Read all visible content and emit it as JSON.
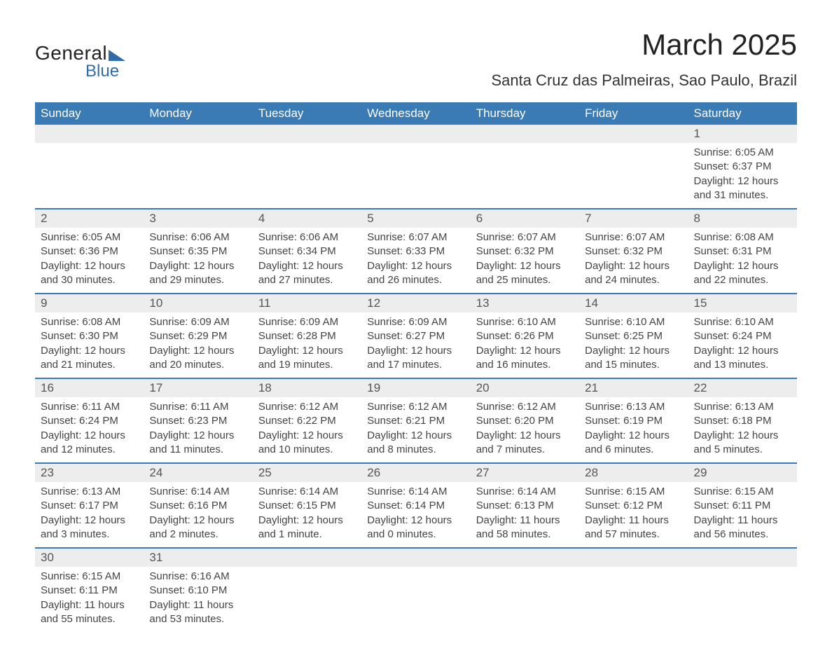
{
  "logo": {
    "line1": "General",
    "line2": "Blue",
    "brand_color": "#2f6ca8"
  },
  "title": "March 2025",
  "location": "Santa Cruz das Palmeiras, Sao Paulo, Brazil",
  "colors": {
    "header_bg": "#3a7ab5",
    "header_fg": "#ffffff",
    "daynum_bg": "#ededed",
    "row_divider": "#3a7ab5",
    "text": "#444444",
    "background": "#ffffff"
  },
  "typography": {
    "title_fontsize": 42,
    "location_fontsize": 22,
    "header_fontsize": 17,
    "body_fontsize": 15
  },
  "weekdays": [
    "Sunday",
    "Monday",
    "Tuesday",
    "Wednesday",
    "Thursday",
    "Friday",
    "Saturday"
  ],
  "labels": {
    "sunrise": "Sunrise:",
    "sunset": "Sunset:",
    "daylight": "Daylight:"
  },
  "weeks": [
    [
      null,
      null,
      null,
      null,
      null,
      null,
      {
        "d": "1",
        "sr": "6:05 AM",
        "ss": "6:37 PM",
        "dl": "12 hours and 31 minutes."
      }
    ],
    [
      {
        "d": "2",
        "sr": "6:05 AM",
        "ss": "6:36 PM",
        "dl": "12 hours and 30 minutes."
      },
      {
        "d": "3",
        "sr": "6:06 AM",
        "ss": "6:35 PM",
        "dl": "12 hours and 29 minutes."
      },
      {
        "d": "4",
        "sr": "6:06 AM",
        "ss": "6:34 PM",
        "dl": "12 hours and 27 minutes."
      },
      {
        "d": "5",
        "sr": "6:07 AM",
        "ss": "6:33 PM",
        "dl": "12 hours and 26 minutes."
      },
      {
        "d": "6",
        "sr": "6:07 AM",
        "ss": "6:32 PM",
        "dl": "12 hours and 25 minutes."
      },
      {
        "d": "7",
        "sr": "6:07 AM",
        "ss": "6:32 PM",
        "dl": "12 hours and 24 minutes."
      },
      {
        "d": "8",
        "sr": "6:08 AM",
        "ss": "6:31 PM",
        "dl": "12 hours and 22 minutes."
      }
    ],
    [
      {
        "d": "9",
        "sr": "6:08 AM",
        "ss": "6:30 PM",
        "dl": "12 hours and 21 minutes."
      },
      {
        "d": "10",
        "sr": "6:09 AM",
        "ss": "6:29 PM",
        "dl": "12 hours and 20 minutes."
      },
      {
        "d": "11",
        "sr": "6:09 AM",
        "ss": "6:28 PM",
        "dl": "12 hours and 19 minutes."
      },
      {
        "d": "12",
        "sr": "6:09 AM",
        "ss": "6:27 PM",
        "dl": "12 hours and 17 minutes."
      },
      {
        "d": "13",
        "sr": "6:10 AM",
        "ss": "6:26 PM",
        "dl": "12 hours and 16 minutes."
      },
      {
        "d": "14",
        "sr": "6:10 AM",
        "ss": "6:25 PM",
        "dl": "12 hours and 15 minutes."
      },
      {
        "d": "15",
        "sr": "6:10 AM",
        "ss": "6:24 PM",
        "dl": "12 hours and 13 minutes."
      }
    ],
    [
      {
        "d": "16",
        "sr": "6:11 AM",
        "ss": "6:24 PM",
        "dl": "12 hours and 12 minutes."
      },
      {
        "d": "17",
        "sr": "6:11 AM",
        "ss": "6:23 PM",
        "dl": "12 hours and 11 minutes."
      },
      {
        "d": "18",
        "sr": "6:12 AM",
        "ss": "6:22 PM",
        "dl": "12 hours and 10 minutes."
      },
      {
        "d": "19",
        "sr": "6:12 AM",
        "ss": "6:21 PM",
        "dl": "12 hours and 8 minutes."
      },
      {
        "d": "20",
        "sr": "6:12 AM",
        "ss": "6:20 PM",
        "dl": "12 hours and 7 minutes."
      },
      {
        "d": "21",
        "sr": "6:13 AM",
        "ss": "6:19 PM",
        "dl": "12 hours and 6 minutes."
      },
      {
        "d": "22",
        "sr": "6:13 AM",
        "ss": "6:18 PM",
        "dl": "12 hours and 5 minutes."
      }
    ],
    [
      {
        "d": "23",
        "sr": "6:13 AM",
        "ss": "6:17 PM",
        "dl": "12 hours and 3 minutes."
      },
      {
        "d": "24",
        "sr": "6:14 AM",
        "ss": "6:16 PM",
        "dl": "12 hours and 2 minutes."
      },
      {
        "d": "25",
        "sr": "6:14 AM",
        "ss": "6:15 PM",
        "dl": "12 hours and 1 minute."
      },
      {
        "d": "26",
        "sr": "6:14 AM",
        "ss": "6:14 PM",
        "dl": "12 hours and 0 minutes."
      },
      {
        "d": "27",
        "sr": "6:14 AM",
        "ss": "6:13 PM",
        "dl": "11 hours and 58 minutes."
      },
      {
        "d": "28",
        "sr": "6:15 AM",
        "ss": "6:12 PM",
        "dl": "11 hours and 57 minutes."
      },
      {
        "d": "29",
        "sr": "6:15 AM",
        "ss": "6:11 PM",
        "dl": "11 hours and 56 minutes."
      }
    ],
    [
      {
        "d": "30",
        "sr": "6:15 AM",
        "ss": "6:11 PM",
        "dl": "11 hours and 55 minutes."
      },
      {
        "d": "31",
        "sr": "6:16 AM",
        "ss": "6:10 PM",
        "dl": "11 hours and 53 minutes."
      },
      null,
      null,
      null,
      null,
      null
    ]
  ]
}
